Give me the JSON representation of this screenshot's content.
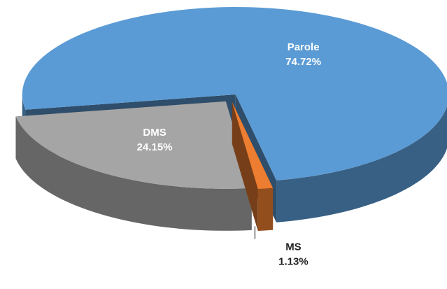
{
  "chart_data": {
    "type": "pie",
    "categories": [
      "Parole",
      "MS",
      "DMS"
    ],
    "values": [
      74.72,
      1.13,
      24.15
    ],
    "value_labels": [
      "74.72%",
      "1.13%",
      "24.15%"
    ],
    "colors": [
      "#5b9bd5",
      "#ed7d31",
      "#a5a5a5"
    ]
  }
}
